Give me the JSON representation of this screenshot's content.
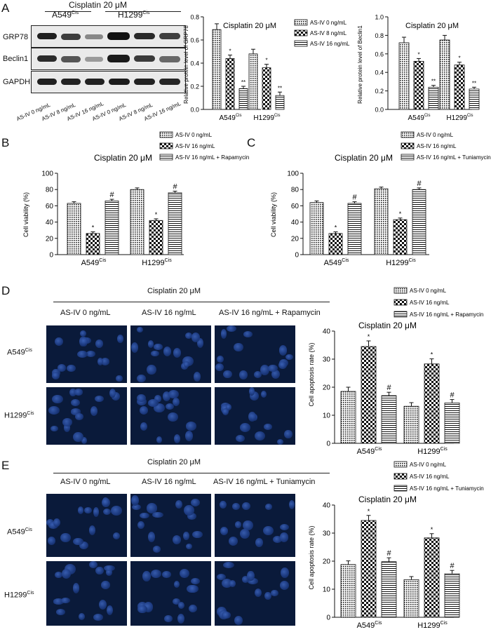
{
  "panels": {
    "A": "A",
    "B": "B",
    "C": "C",
    "D": "D",
    "E": "E"
  },
  "blot": {
    "header": "Cisplatin 20 μM",
    "group1_base": "A549",
    "group1_sup": "Cis",
    "group2_base": "H1299",
    "group2_sup": "Cis",
    "rows": [
      "GRP78",
      "Beclin1",
      "GAPDH"
    ],
    "lanes": [
      "AS-IV 0 ng/mL",
      "AS-IV 8 ng/mL",
      "AS-IV 16 ng/mL",
      "AS-IV 0 ng/mL",
      "AS-IV 8 ng/mL",
      "AS-IV 16 ng/mL"
    ]
  },
  "micro": {
    "D": {
      "header": "Cisplatin 20 μM",
      "cols": [
        "AS-IV 0 ng/mL",
        "AS-IV 16 ng/mL",
        "AS-IV 16 ng/mL + Rapamycin"
      ],
      "rows": [
        {
          "base": "A549",
          "sup": "Cis"
        },
        {
          "base": "H1299",
          "sup": "Cis"
        }
      ]
    },
    "E": {
      "header": "Cisplatin 20 μM",
      "cols": [
        "AS-IV 0 ng/mL",
        "AS-IV 16 ng/mL",
        "AS-IV 16 ng/mL + Tuniamycin"
      ],
      "rows": [
        {
          "base": "A549",
          "sup": "Cis"
        },
        {
          "base": "H1299",
          "sup": "Cis"
        }
      ]
    }
  },
  "chart_data": [
    {
      "id": "A-grp78",
      "type": "bar",
      "title": "Cisplatin 20 μM",
      "ylabel": "Relative protein level of GRP78",
      "xlabel": "",
      "ylim": [
        0,
        0.8
      ],
      "yticks": [
        0,
        0.2,
        0.4,
        0.6,
        0.8
      ],
      "categories": [
        {
          "base": "A549",
          "sup": "Cis"
        },
        {
          "base": "H1299",
          "sup": "Cis"
        }
      ],
      "series": [
        {
          "name": "AS-IV 0 ng/mL",
          "values": [
            0.69,
            0.48
          ],
          "errors": [
            0.05,
            0.04
          ],
          "marks": [
            "",
            ""
          ],
          "pattern": "grid"
        },
        {
          "name": "AS-IV 8 ng/mL",
          "values": [
            0.44,
            0.36
          ],
          "errors": [
            0.03,
            0.03
          ],
          "marks": [
            "*",
            "*"
          ],
          "pattern": "check"
        },
        {
          "name": "AS-IV 16 ng/mL",
          "values": [
            0.18,
            0.12
          ],
          "errors": [
            0.02,
            0.03
          ],
          "marks": [
            "**",
            "**"
          ],
          "pattern": "hline"
        }
      ],
      "legend": "top-right"
    },
    {
      "id": "A-beclin1",
      "type": "bar",
      "title": "Cisplatin 20 μM",
      "ylabel": "Relative protein level of Beclin1",
      "xlabel": "",
      "ylim": [
        0,
        1.0
      ],
      "yticks": [
        0,
        0.2,
        0.4,
        0.6,
        0.8,
        1.0
      ],
      "categories": [
        {
          "base": "A549",
          "sup": "Cis"
        },
        {
          "base": "H1299",
          "sup": "Cis"
        }
      ],
      "series": [
        {
          "name": "AS-IV 0 ng/mL",
          "values": [
            0.72,
            0.75
          ],
          "errors": [
            0.06,
            0.05
          ],
          "marks": [
            "",
            ""
          ],
          "pattern": "grid"
        },
        {
          "name": "AS-IV 8 ng/mL",
          "values": [
            0.52,
            0.48
          ],
          "errors": [
            0.03,
            0.03
          ],
          "marks": [
            "*",
            "*"
          ],
          "pattern": "check"
        },
        {
          "name": "AS-IV 16 ng/mL",
          "values": [
            0.24,
            0.22
          ],
          "errors": [
            0.02,
            0.02
          ],
          "marks": [
            "**",
            "**"
          ],
          "pattern": "hline"
        }
      ]
    },
    {
      "id": "B",
      "type": "bar",
      "title": "Cisplatin 20 μM",
      "ylabel": "Cell viability (%)",
      "xlabel": "",
      "ylim": [
        0,
        100
      ],
      "yticks": [
        0,
        20,
        40,
        60,
        80,
        100
      ],
      "categories": [
        {
          "base": "A549",
          "sup": "Cis"
        },
        {
          "base": "H1299",
          "sup": "Cis"
        }
      ],
      "series": [
        {
          "name": "AS-IV 0 ng/mL",
          "values": [
            63,
            80
          ],
          "errors": [
            2,
            2
          ],
          "marks": [
            "",
            ""
          ],
          "pattern": "grid"
        },
        {
          "name": "AS-IV 16 ng/mL",
          "values": [
            26,
            42
          ],
          "errors": [
            2,
            2
          ],
          "marks": [
            "*",
            "*"
          ],
          "pattern": "check"
        },
        {
          "name": "AS-IV 16 ng/mL + Rapamycin",
          "values": [
            66,
            76
          ],
          "errors": [
            2,
            2
          ],
          "marks": [
            "#",
            "#"
          ],
          "pattern": "hline"
        }
      ],
      "legend": "top-right"
    },
    {
      "id": "C",
      "type": "bar",
      "title": "Cisplatin 20 μM",
      "ylabel": "Cell viability (%)",
      "xlabel": "",
      "ylim": [
        0,
        100
      ],
      "yticks": [
        0,
        20,
        40,
        60,
        80,
        100
      ],
      "categories": [
        {
          "base": "A549",
          "sup": "Cis"
        },
        {
          "base": "H1299",
          "sup": "Cis"
        }
      ],
      "series": [
        {
          "name": "AS-IV 0 ng/mL",
          "values": [
            64,
            81
          ],
          "errors": [
            2,
            2
          ],
          "marks": [
            "",
            ""
          ],
          "pattern": "grid"
        },
        {
          "name": "AS-IV 16 ng/mL",
          "values": [
            26,
            43
          ],
          "errors": [
            2,
            2
          ],
          "marks": [
            "*",
            "*"
          ],
          "pattern": "check"
        },
        {
          "name": "AS-IV 16 ng/mL + Tuniamycin",
          "values": [
            63,
            80
          ],
          "errors": [
            2,
            2
          ],
          "marks": [
            "#",
            "#"
          ],
          "pattern": "hline"
        }
      ],
      "legend": "top-right"
    },
    {
      "id": "D",
      "type": "bar",
      "title": "Cisplatin 20 μM",
      "ylabel": "Cell apoptosis rate (%)",
      "xlabel": "",
      "ylim": [
        0,
        40
      ],
      "yticks": [
        0,
        10,
        20,
        30,
        40
      ],
      "categories": [
        {
          "base": "A549",
          "sup": "Cis"
        },
        {
          "base": "H1299",
          "sup": "Cis"
        }
      ],
      "series": [
        {
          "name": "AS-IV 0 ng/mL",
          "values": [
            18.5,
            13.2
          ],
          "errors": [
            1.5,
            1.3
          ],
          "marks": [
            "",
            ""
          ],
          "pattern": "grid"
        },
        {
          "name": "AS-IV 16 ng/mL",
          "values": [
            34.5,
            28.3
          ],
          "errors": [
            2.0,
            1.8
          ],
          "marks": [
            "*",
            "*"
          ],
          "pattern": "check"
        },
        {
          "name": "AS-IV 16 ng/mL + Rapamycin",
          "values": [
            17.0,
            14.4
          ],
          "errors": [
            1.2,
            1.2
          ],
          "marks": [
            "#",
            "#"
          ],
          "pattern": "hline"
        }
      ],
      "legend": "top-right"
    },
    {
      "id": "E",
      "type": "bar",
      "title": "Cisplatin 20 μM",
      "ylabel": "Cell apoptosis rate (%)",
      "xlabel": "",
      "ylim": [
        0,
        40
      ],
      "yticks": [
        0,
        10,
        20,
        30,
        40
      ],
      "categories": [
        {
          "base": "A549",
          "sup": "Cis"
        },
        {
          "base": "H1299",
          "sup": "Cis"
        }
      ],
      "series": [
        {
          "name": "AS-IV 0 ng/mL",
          "values": [
            18.8,
            13.4
          ],
          "errors": [
            1.3,
            1.1
          ],
          "marks": [
            "",
            ""
          ],
          "pattern": "grid"
        },
        {
          "name": "AS-IV 16 ng/mL",
          "values": [
            34.5,
            28.3
          ],
          "errors": [
            1.8,
            1.5
          ],
          "marks": [
            "*",
            "*"
          ],
          "pattern": "check"
        },
        {
          "name": "AS-IV 16 ng/mL + Tuniamycin",
          "values": [
            19.8,
            15.5
          ],
          "errors": [
            1.4,
            1.2
          ],
          "marks": [
            "#",
            "#"
          ],
          "pattern": "hline"
        }
      ],
      "legend": "top-right"
    }
  ]
}
